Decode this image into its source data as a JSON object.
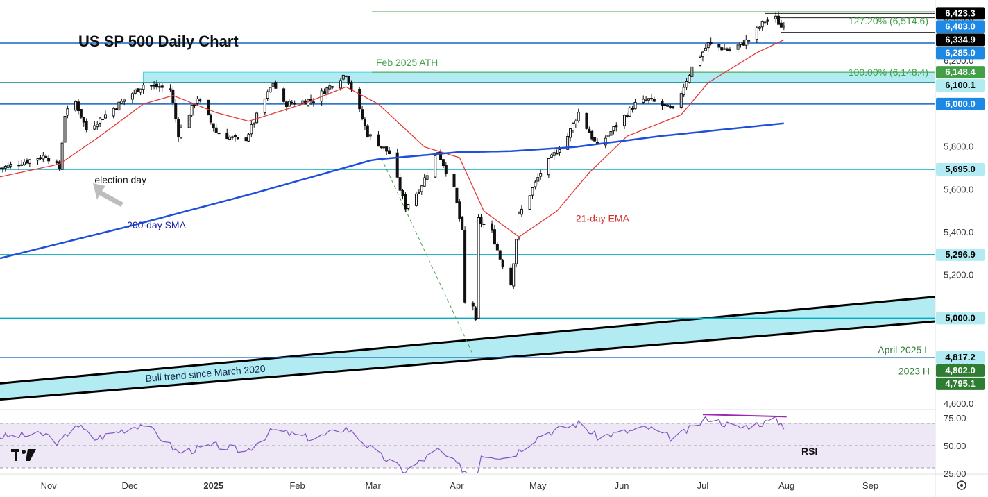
{
  "chart_data": {
    "type": "candlestick",
    "title": "US SP 500 Daily Chart",
    "price_axis": {
      "ylim": [
        4580,
        6460
      ],
      "ticks": [
        4600,
        4800,
        5000,
        5200,
        5400,
        5600,
        5800,
        6000,
        6200,
        6400
      ],
      "tick_labels": [
        "4,600.0",
        "4,800.0",
        "5,000.0",
        "5,200.0",
        "5,400.0",
        "5,600.0",
        "5,800.0",
        "6,000.0",
        "6,200.0",
        "6,400.0"
      ]
    },
    "x_axis": {
      "labels": [
        "Nov",
        "Dec",
        "2025",
        "Feb",
        "Mar",
        "Apr",
        "May",
        "Jun",
        "Jul",
        "Aug",
        "Sep"
      ],
      "label_dates": [
        "2024-11-01",
        "2024-12-01",
        "2025-01-01",
        "2025-02-01",
        "2025-03-01",
        "2025-04-01",
        "2025-05-01",
        "2025-06-01",
        "2025-07-01",
        "2025-08-01",
        "2025-09-01"
      ],
      "range": [
        "2024-10-14",
        "2025-09-25"
      ]
    },
    "anchors": [
      {
        "date": "2024-10-14",
        "close": 5700
      },
      {
        "date": "2024-10-31",
        "close": 5760
      },
      {
        "date": "2024-11-05",
        "close": 5700
      },
      {
        "date": "2024-11-07",
        "close": 5950
      },
      {
        "date": "2024-11-11",
        "close": 6010
      },
      {
        "date": "2024-11-15",
        "close": 5880
      },
      {
        "date": "2024-11-27",
        "close": 6000
      },
      {
        "date": "2024-12-06",
        "close": 6090
      },
      {
        "date": "2024-12-16",
        "close": 6070
      },
      {
        "date": "2024-12-19",
        "close": 5860
      },
      {
        "date": "2024-12-26",
        "close": 6030
      },
      {
        "date": "2025-01-02",
        "close": 5870
      },
      {
        "date": "2025-01-10",
        "close": 5830
      },
      {
        "date": "2025-01-13",
        "close": 5840
      },
      {
        "date": "2025-01-23",
        "close": 6100
      },
      {
        "date": "2025-01-27",
        "close": 6000
      },
      {
        "date": "2025-02-07",
        "close": 6020
      },
      {
        "date": "2025-02-19",
        "close": 6144
      },
      {
        "date": "2025-02-27",
        "close": 5860
      },
      {
        "date": "2025-03-07",
        "close": 5770
      },
      {
        "date": "2025-03-13",
        "close": 5520
      },
      {
        "date": "2025-03-18",
        "close": 5600
      },
      {
        "date": "2025-03-25",
        "close": 5780
      },
      {
        "date": "2025-03-31",
        "close": 5600
      },
      {
        "date": "2025-04-03",
        "close": 5400
      },
      {
        "date": "2025-04-04",
        "close": 5070
      },
      {
        "date": "2025-04-07",
        "close": 5060
      },
      {
        "date": "2025-04-08",
        "close": 4980
      },
      {
        "date": "2025-04-09",
        "close": 5460
      },
      {
        "date": "2025-04-14",
        "close": 5400
      },
      {
        "date": "2025-04-17",
        "close": 5280
      },
      {
        "date": "2025-04-21",
        "close": 5160
      },
      {
        "date": "2025-04-24",
        "close": 5480
      },
      {
        "date": "2025-05-02",
        "close": 5680
      },
      {
        "date": "2025-05-12",
        "close": 5850
      },
      {
        "date": "2025-05-16",
        "close": 5960
      },
      {
        "date": "2025-05-23",
        "close": 5800
      },
      {
        "date": "2025-06-06",
        "close": 6000
      },
      {
        "date": "2025-06-11",
        "close": 6020
      },
      {
        "date": "2025-06-20",
        "close": 5970
      },
      {
        "date": "2025-06-27",
        "close": 6170
      },
      {
        "date": "2025-07-03",
        "close": 6280
      },
      {
        "date": "2025-07-11",
        "close": 6250
      },
      {
        "date": "2025-07-18",
        "close": 6300
      },
      {
        "date": "2025-07-24",
        "close": 6390
      },
      {
        "date": "2025-07-28",
        "close": 6400
      },
      {
        "date": "2025-07-30",
        "close": 6360
      },
      {
        "date": "2025-07-31",
        "close": 6380
      }
    ],
    "ema21_anchors": [
      {
        "date": "2024-10-14",
        "value": 5660
      },
      {
        "date": "2024-11-05",
        "value": 5720
      },
      {
        "date": "2024-11-20",
        "value": 5850
      },
      {
        "date": "2024-12-06",
        "value": 6000
      },
      {
        "date": "2024-12-17",
        "value": 6040
      },
      {
        "date": "2025-01-02",
        "value": 5960
      },
      {
        "date": "2025-01-14",
        "value": 5920
      },
      {
        "date": "2025-02-03",
        "value": 6000
      },
      {
        "date": "2025-02-19",
        "value": 6080
      },
      {
        "date": "2025-03-03",
        "value": 6000
      },
      {
        "date": "2025-03-20",
        "value": 5800
      },
      {
        "date": "2025-04-02",
        "value": 5750
      },
      {
        "date": "2025-04-11",
        "value": 5500
      },
      {
        "date": "2025-04-24",
        "value": 5380
      },
      {
        "date": "2025-05-08",
        "value": 5500
      },
      {
        "date": "2025-05-20",
        "value": 5680
      },
      {
        "date": "2025-06-03",
        "value": 5850
      },
      {
        "date": "2025-06-23",
        "value": 5950
      },
      {
        "date": "2025-07-03",
        "value": 6100
      },
      {
        "date": "2025-07-21",
        "value": 6240
      },
      {
        "date": "2025-07-31",
        "value": 6300
      }
    ],
    "sma200_anchors": [
      {
        "date": "2024-10-14",
        "value": 5280
      },
      {
        "date": "2024-12-01",
        "value": 5430
      },
      {
        "date": "2025-01-15",
        "value": 5580
      },
      {
        "date": "2025-03-01",
        "value": 5740
      },
      {
        "date": "2025-04-01",
        "value": 5775
      },
      {
        "date": "2025-04-21",
        "value": 5780
      },
      {
        "date": "2025-05-15",
        "value": 5800
      },
      {
        "date": "2025-06-15",
        "value": 5850
      },
      {
        "date": "2025-07-31",
        "value": 5910
      }
    ],
    "horizontal_levels": [
      {
        "value": 6285.0,
        "color": "#1565c0",
        "label": "6,285.0"
      },
      {
        "value": 6100.1,
        "color": "#00838f",
        "label": "6,100.1"
      },
      {
        "value": 6000.0,
        "color": "#1565c0",
        "label": "6,000.0"
      },
      {
        "value": 5695.0,
        "color": "#00acc1",
        "label": "5,695.0"
      },
      {
        "value": 5296.9,
        "color": "#00acc1",
        "label": "5,296.9"
      },
      {
        "value": 5000.0,
        "color": "#00acc1",
        "label": "5,000.0"
      },
      {
        "value": 4817.2,
        "color": "#1565c0",
        "label": "4,817.2"
      }
    ],
    "price_labels": [
      {
        "value": 6423.3,
        "label": "6,423.3",
        "bg": "#000000",
        "fg": "#ffffff"
      },
      {
        "value": 6403.0,
        "label": "6,403.0",
        "bg": "#1e88e5",
        "fg": "#ffffff"
      },
      {
        "value": 6334.9,
        "label": "6,334.9",
        "bg": "#000000",
        "fg": "#ffffff"
      },
      {
        "value": 6285.0,
        "label": "6,285.0",
        "bg": "#1e88e5",
        "fg": "#ffffff"
      },
      {
        "value": 6148.4,
        "label": "6,148.4",
        "bg": "#43a047",
        "fg": "#ffffff"
      },
      {
        "value": 6100.1,
        "label": "6,100.1",
        "bg": "#b2ebf2",
        "fg": "#000000"
      },
      {
        "value": 6000.0,
        "label": "6,000.0",
        "bg": "#1e88e5",
        "fg": "#ffffff"
      },
      {
        "value": 5695.0,
        "label": "5,695.0",
        "bg": "#b2ebf2",
        "fg": "#000000"
      },
      {
        "value": 5296.9,
        "label": "5,296.9",
        "bg": "#b2ebf2",
        "fg": "#000000"
      },
      {
        "value": 5000.0,
        "label": "5,000.0",
        "bg": "#b2ebf2",
        "fg": "#000000"
      },
      {
        "value": 4817.2,
        "label": "4,817.2",
        "bg": "#b2ebf2",
        "fg": "#000000"
      },
      {
        "value": 4802.0,
        "label": "4,802.0",
        "bg": "#2e7d32",
        "fg": "#ffffff"
      },
      {
        "value": 4795.1,
        "label": "4,795.1",
        "bg": "#2e7d32",
        "fg": "#ffffff"
      }
    ],
    "fib_levels": [
      {
        "value": 6514.6,
        "label": "127.20% (6,514.6)"
      },
      {
        "value": 6148.4,
        "label": "100.00% (6,148.4)"
      }
    ],
    "ath_zone": {
      "from": 6100.1,
      "to": 6148.4,
      "start": "2024-12-06",
      "label": "Feb 2025 ATH"
    },
    "trend_channel": {
      "label": "Bull trend since March 2020",
      "lower": [
        {
          "date": "2024-10-14",
          "value": 4620
        },
        {
          "date": "2025-09-25",
          "value": 4985
        }
      ],
      "upper": [
        {
          "date": "2025-04-07",
          "value": 4900
        },
        {
          "date": "2025-09-25",
          "value": 5100
        }
      ]
    },
    "annotations": [
      {
        "text": "election day",
        "date": "2024-11-18",
        "value": 5630
      },
      {
        "text": "200-day SMA",
        "date": "2024-11-30",
        "value": 5420,
        "color": "#1a1aa8"
      },
      {
        "text": "21-day EMA",
        "date": "2025-05-15",
        "value": 5450,
        "color": "#d32f2f"
      },
      {
        "text": "April 2025 L",
        "value": 4817.2,
        "color": "#2e7d32"
      },
      {
        "text": "2023 H",
        "value": 4802.0,
        "color": "#2e7d32"
      }
    ],
    "rsi": {
      "label": "RSI",
      "ylim": [
        25,
        80
      ],
      "ticks": [
        25,
        50,
        75
      ],
      "tick_labels": [
        "25.00",
        "50.00",
        "75.00"
      ],
      "levels": [
        70,
        50,
        30
      ],
      "anchors": [
        {
          "date": "2024-10-14",
          "value": 58
        },
        {
          "date": "2024-10-31",
          "value": 60
        },
        {
          "date": "2024-11-05",
          "value": 52
        },
        {
          "date": "2024-11-11",
          "value": 70
        },
        {
          "date": "2024-11-18",
          "value": 56
        },
        {
          "date": "2024-12-06",
          "value": 70
        },
        {
          "date": "2024-12-19",
          "value": 44
        },
        {
          "date": "2025-01-02",
          "value": 50
        },
        {
          "date": "2025-01-13",
          "value": 45
        },
        {
          "date": "2025-01-23",
          "value": 64
        },
        {
          "date": "2025-02-07",
          "value": 56
        },
        {
          "date": "2025-02-19",
          "value": 66
        },
        {
          "date": "2025-03-03",
          "value": 42
        },
        {
          "date": "2025-03-13",
          "value": 27
        },
        {
          "date": "2025-03-25",
          "value": 46
        },
        {
          "date": "2025-04-08",
          "value": 20
        },
        {
          "date": "2025-04-10",
          "value": 42
        },
        {
          "date": "2025-04-21",
          "value": 40
        },
        {
          "date": "2025-05-02",
          "value": 60
        },
        {
          "date": "2025-05-16",
          "value": 70
        },
        {
          "date": "2025-05-23",
          "value": 58
        },
        {
          "date": "2025-06-11",
          "value": 66
        },
        {
          "date": "2025-06-20",
          "value": 56
        },
        {
          "date": "2025-07-03",
          "value": 75
        },
        {
          "date": "2025-07-14",
          "value": 66
        },
        {
          "date": "2025-07-28",
          "value": 73
        },
        {
          "date": "2025-07-31",
          "value": 68
        }
      ],
      "divergence": [
        {
          "date": "2025-07-01",
          "value": 78
        },
        {
          "date": "2025-08-01",
          "value": 76
        }
      ]
    },
    "grid": false,
    "legend": "none"
  }
}
